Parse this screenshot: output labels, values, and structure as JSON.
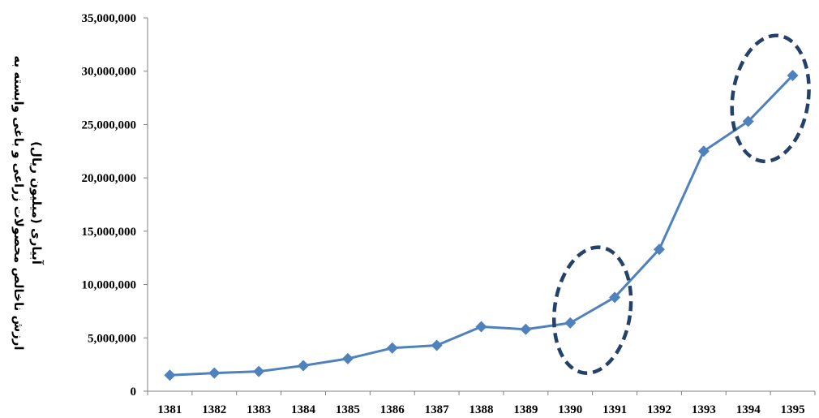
{
  "chart_data": {
    "type": "line",
    "title": "",
    "xlabel": "",
    "ylabel_line1": "ارزش ناخالص محصولات زراعی و باغی وابسته به",
    "ylabel_line2": "آبیاری (میلیون ریال)",
    "ylim": [
      0,
      35000000
    ],
    "grid": false,
    "y_ticks": [
      "0",
      "5,000,000",
      "10,000,000",
      "15,000,000",
      "20,000,000",
      "25,000,000",
      "30,000,000",
      "35,000,000"
    ],
    "categories": [
      "1381",
      "1382",
      "1383",
      "1384",
      "1385",
      "1386",
      "1387",
      "1388",
      "1389",
      "1390",
      "1391",
      "1392",
      "1393",
      "1394",
      "1395"
    ],
    "series": [
      {
        "values": [
          1500000,
          1700000,
          1850000,
          2400000,
          3050000,
          4050000,
          4300000,
          6050000,
          5800000,
          6400000,
          8800000,
          13300000,
          22500000,
          25300000,
          29600000
        ]
      }
    ],
    "colors": {
      "line": "#4f81bd",
      "marker": "#4f81bd",
      "highlight": "#244269"
    },
    "highlights": [
      {
        "from": "1390",
        "to": "1391"
      },
      {
        "from": "1394",
        "to": "1395"
      }
    ]
  }
}
